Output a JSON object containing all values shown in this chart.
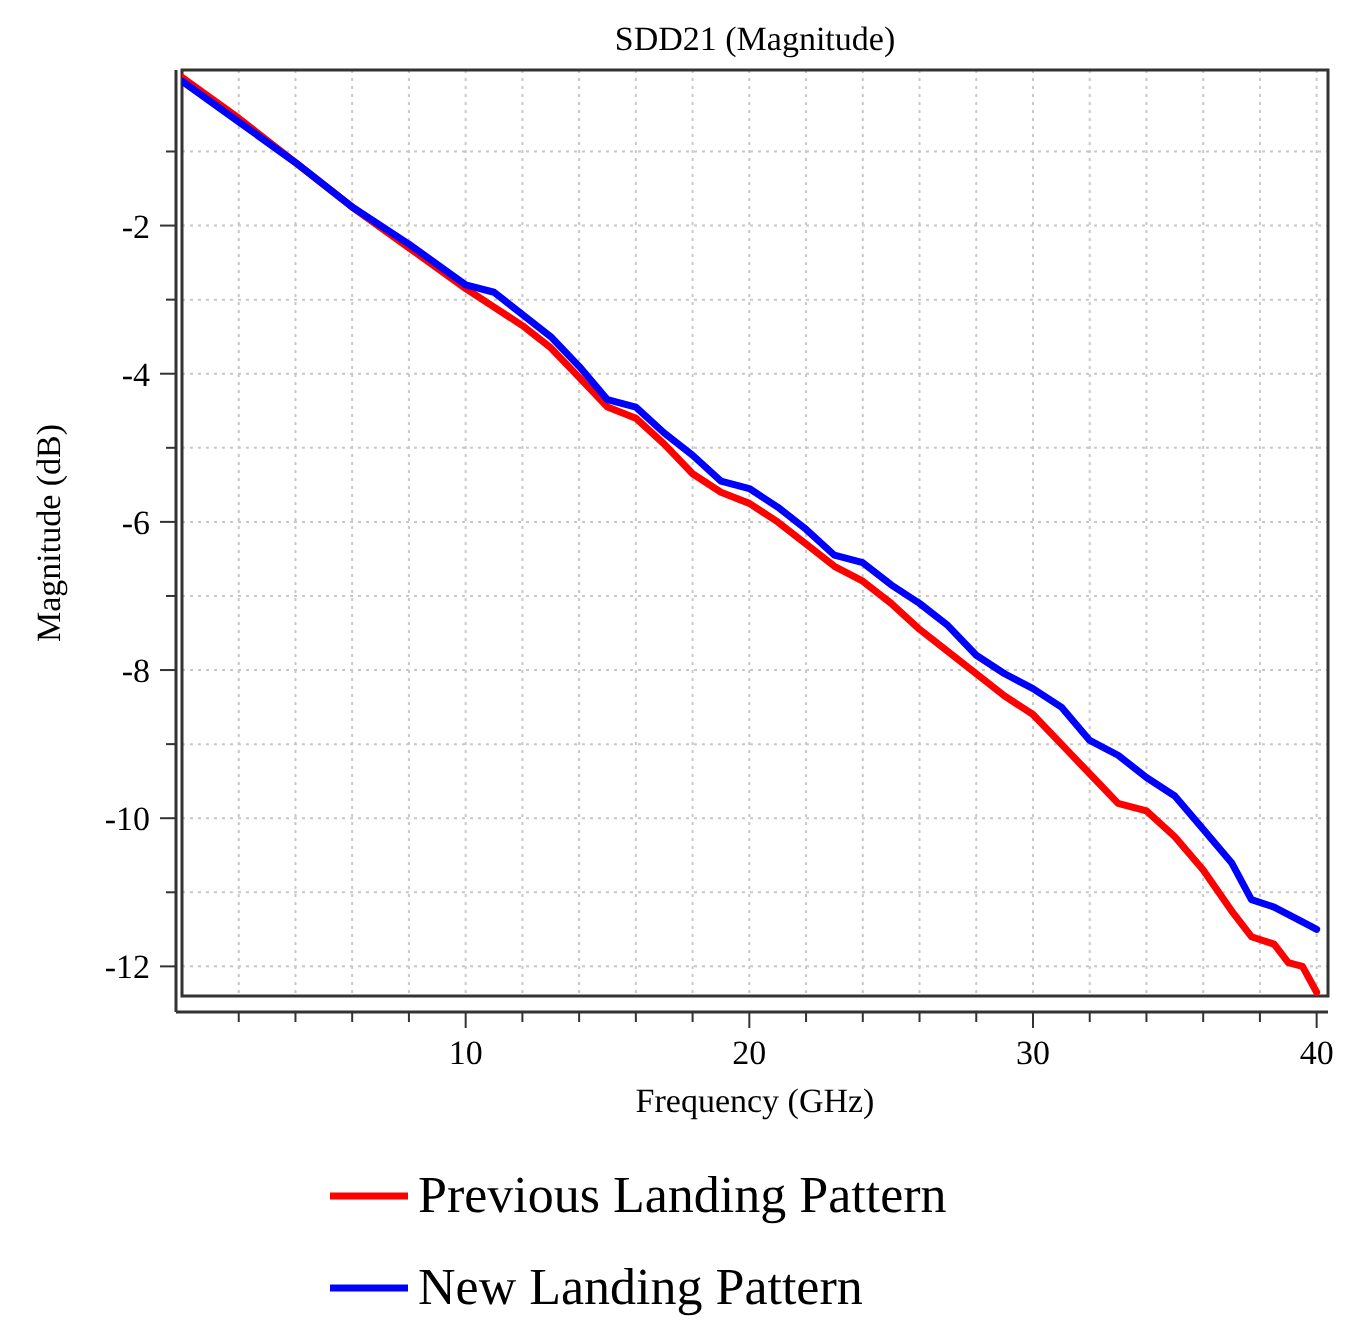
{
  "chart_data": {
    "type": "line",
    "title": "SDD21 (Magnitude)",
    "xlabel": "Frequency (GHz)",
    "ylabel": "Magnitude (dB)",
    "xlim": [
      0,
      40.4
    ],
    "ylim": [
      -12.4,
      0.1
    ],
    "xticks": [
      {
        "value": 2,
        "label": null
      },
      {
        "value": 4,
        "label": null
      },
      {
        "value": 6,
        "label": null
      },
      {
        "value": 8,
        "label": null
      },
      10,
      {
        "value": 12,
        "label": null
      },
      {
        "value": 14,
        "label": null
      },
      {
        "value": 16,
        "label": null
      },
      {
        "value": 18,
        "label": null
      },
      20,
      {
        "value": 22,
        "label": null
      },
      {
        "value": 24,
        "label": null
      },
      {
        "value": 26,
        "label": null
      },
      {
        "value": 28,
        "label": null
      },
      30,
      {
        "value": 32,
        "label": null
      },
      {
        "value": 34,
        "label": null
      },
      {
        "value": 36,
        "label": null
      },
      {
        "value": 38,
        "label": null
      },
      40
    ],
    "yticks": [
      {
        "value": -1,
        "label": null
      },
      -2,
      {
        "value": -3,
        "label": null
      },
      -4,
      {
        "value": -5,
        "label": null
      },
      -6,
      {
        "value": -7,
        "label": null
      },
      -8,
      {
        "value": -9,
        "label": null
      },
      -10,
      {
        "value": -11,
        "label": null
      },
      -12
    ],
    "grid": true,
    "legend": "bottom",
    "line_style": "solid",
    "marker": "none",
    "series": [
      {
        "name": "Previous Landing Pattern",
        "color": "#ff0000",
        "x": [
          0,
          2,
          4,
          6,
          8,
          10,
          11,
          12,
          13,
          14,
          15,
          16,
          17,
          18,
          19,
          20,
          21,
          22,
          23,
          24,
          25,
          26,
          27,
          28,
          29,
          30,
          31,
          32,
          33,
          34,
          35,
          36,
          37,
          37.7,
          38.5,
          39,
          39.5,
          40
        ],
        "values": [
          0,
          -0.55,
          -1.15,
          -1.75,
          -2.3,
          -2.85,
          -3.1,
          -3.35,
          -3.65,
          -4.05,
          -4.45,
          -4.6,
          -4.95,
          -5.35,
          -5.6,
          -5.75,
          -6,
          -6.3,
          -6.6,
          -6.8,
          -7.1,
          -7.45,
          -7.75,
          -8.05,
          -8.35,
          -8.6,
          -9,
          -9.4,
          -9.8,
          -9.9,
          -10.25,
          -10.7,
          -11.25,
          -11.6,
          -11.7,
          -11.95,
          -12,
          -12.35
        ]
      },
      {
        "name": "New Landing Pattern",
        "color": "#0000ff",
        "x": [
          0,
          2,
          4,
          6,
          8,
          10,
          11,
          12,
          13,
          14,
          15,
          16,
          17,
          18,
          19,
          20,
          21,
          22,
          23,
          24,
          25,
          26,
          27,
          28,
          29,
          30,
          31,
          32,
          33,
          34,
          35,
          36,
          37,
          37.7,
          38.5,
          39.5,
          40
        ],
        "values": [
          -0.05,
          -0.6,
          -1.15,
          -1.75,
          -2.25,
          -2.8,
          -2.9,
          -3.2,
          -3.5,
          -3.9,
          -4.35,
          -4.45,
          -4.8,
          -5.1,
          -5.45,
          -5.55,
          -5.8,
          -6.1,
          -6.45,
          -6.55,
          -6.85,
          -7.1,
          -7.4,
          -7.8,
          -8.05,
          -8.25,
          -8.5,
          -8.95,
          -9.15,
          -9.45,
          -9.7,
          -10.15,
          -10.6,
          -11.1,
          -11.2,
          -11.4,
          -11.5
        ]
      }
    ]
  }
}
